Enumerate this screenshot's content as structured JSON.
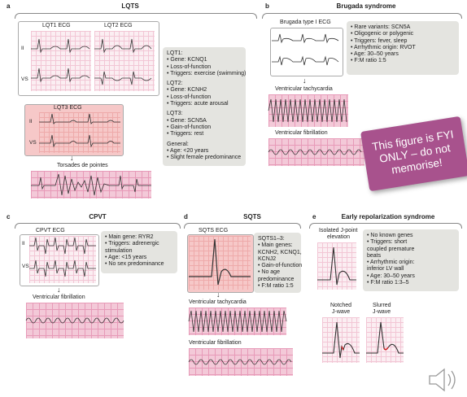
{
  "panel_a": {
    "letter": "a",
    "title": "LQTS",
    "ecg1_title": "LQT1 ECG",
    "ecg2_title": "LQT2 ECG",
    "ecg3_title": "LQT3 ECG",
    "lead_ii": "II",
    "lead_vs": "VS",
    "torsades": "Torsades de pointes",
    "info": [
      "LQT1:",
      "• Gene: KCNQ1",
      "• Loss-of-function",
      "• Triggers: exercise (swimming)",
      "",
      "LQT2:",
      "• Gene: KCNH2",
      "• Loss-of-function",
      "• Triggers: acute arousal",
      "",
      "LQT3:",
      "• Gene: SCN5A",
      "• Gain-of-function",
      "• Triggers: rest",
      "",
      "General:",
      "• Age: <20 years",
      "• Slight female predominance"
    ]
  },
  "panel_b": {
    "letter": "b",
    "title": "Brugada syndrome",
    "ecg_title": "Brugada type I ECG",
    "vt": "Ventricular tachycardia",
    "vf": "Ventricular fibrillation",
    "info": [
      "• Rare variants: SCN5A",
      "• Oligogenic or polygenic",
      "• Triggers: fever, sleep",
      "• Arrhythmic origin: RVOT",
      "• Age: 30–50 years",
      "• F:M ratio 1:5"
    ]
  },
  "panel_c": {
    "letter": "c",
    "title": "CPVT",
    "ecg_title": "CPVT ECG",
    "lead_ii": "II",
    "lead_vs": "VS",
    "vf": "Ventricular fibrillation",
    "info": [
      "• Main gene: RYR2",
      "• Triggers: adrenergic",
      "  stimulation",
      "• Age: <15 years",
      "• No sex predominance"
    ]
  },
  "panel_d": {
    "letter": "d",
    "title": "SQTS",
    "ecg_title": "SQTS ECG",
    "vt": "Ventricular tachycardia",
    "vf": "Ventricular fibrillation",
    "info": [
      "SQTS1–3:",
      "• Main genes:",
      "  KCNH2, KCNQ1,",
      "  KCNJ2",
      "• Gain-of-function",
      "• No age",
      "  predominance",
      "• F:M ratio 1:5"
    ]
  },
  "panel_e": {
    "letter": "e",
    "title": "Early repolarization syndrome",
    "ecg_title_l1": "Isolated J-point",
    "ecg_title_l2": "elevation",
    "notched_l1": "Notched",
    "notched_l2": "J-wave",
    "slurred_l1": "Slurred",
    "slurred_l2": "J-wave",
    "info": [
      "• No known genes",
      "• Triggers: short",
      "  coupled premature",
      "  beats",
      "• Arrhythmic origin:",
      "  inferior LV wall",
      "• Age: 30–50 years",
      "• F:M ratio 1:3–5"
    ]
  },
  "note": {
    "text": "This figure is FYI ONLY – do not memorise!"
  }
}
